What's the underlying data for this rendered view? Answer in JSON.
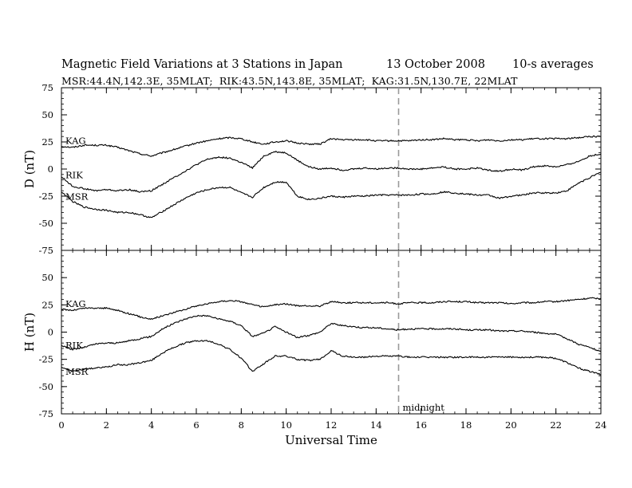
{
  "header": {
    "title": "Magnetic Field Variations at 3 Stations in Japan",
    "date": "13 October 2008",
    "averaging": "10-s averages",
    "stations_line": "MSR:44.4N,142.3E, 35MLAT;  RIK:43.5N,143.8E, 35MLAT;  KAG:31.5N,130.7E, 22MLAT"
  },
  "chart_data": [
    {
      "type": "line",
      "title": "",
      "xlabel": "",
      "ylabel": "D (nT)",
      "xlim": [
        0,
        24
      ],
      "ylim": [
        -75,
        75
      ],
      "yticks": [
        -75,
        -50,
        -25,
        0,
        25,
        50,
        75
      ],
      "xticks": [
        0,
        2,
        4,
        6,
        8,
        10,
        12,
        14,
        16,
        18,
        20,
        22,
        24
      ],
      "grid": false,
      "x": [
        0,
        0.5,
        1,
        1.5,
        2,
        2.5,
        3,
        3.5,
        4,
        4.5,
        5,
        5.5,
        6,
        6.5,
        7,
        7.5,
        8,
        8.5,
        9,
        9.5,
        10,
        10.5,
        11,
        11.5,
        12,
        12.5,
        13,
        13.5,
        14,
        14.5,
        15,
        15.5,
        16,
        16.5,
        17,
        17.5,
        18,
        18.5,
        19,
        19.5,
        20,
        20.5,
        21,
        21.5,
        22,
        22.5,
        23,
        23.5,
        24
      ],
      "series": [
        {
          "name": "KAG",
          "values": [
            21,
            20,
            22,
            22,
            22,
            20,
            17,
            14,
            12,
            15,
            18,
            21,
            24,
            26,
            28,
            29,
            28,
            25,
            23,
            25,
            26,
            24,
            23,
            23,
            28,
            27,
            27,
            27,
            26,
            26,
            26,
            26,
            27,
            27,
            28,
            27,
            27,
            26,
            27,
            26,
            27,
            27,
            28,
            28,
            28,
            28,
            29,
            30,
            30
          ]
        },
        {
          "name": "RIK",
          "values": [
            -7,
            -16,
            -18,
            -20,
            -19,
            -20,
            -19,
            -21,
            -20,
            -14,
            -8,
            -2,
            4,
            9,
            11,
            10,
            6,
            1,
            12,
            16,
            15,
            8,
            2,
            0,
            1,
            -1,
            0,
            1,
            0,
            1,
            1,
            0,
            0,
            1,
            2,
            0,
            0,
            1,
            -1,
            -2,
            0,
            -1,
            2,
            3,
            2,
            4,
            7,
            12,
            14
          ]
        },
        {
          "name": "MSR",
          "values": [
            -21,
            -30,
            -35,
            -37,
            -38,
            -40,
            -40,
            -42,
            -45,
            -39,
            -33,
            -27,
            -22,
            -19,
            -17,
            -17,
            -22,
            -26,
            -17,
            -12,
            -12,
            -25,
            -28,
            -27,
            -25,
            -26,
            -25,
            -25,
            -24,
            -24,
            -24,
            -24,
            -23,
            -23,
            -21,
            -22,
            -23,
            -24,
            -24,
            -27,
            -25,
            -24,
            -22,
            -22,
            -22,
            -20,
            -13,
            -8,
            -3
          ]
        }
      ]
    },
    {
      "type": "line",
      "title": "",
      "xlabel": "Universal Time",
      "ylabel": "H (nT)",
      "xlim": [
        0,
        24
      ],
      "ylim": [
        -75,
        75
      ],
      "yticks": [
        -75,
        -50,
        -25,
        0,
        25,
        50,
        75
      ],
      "xticks": [
        0,
        2,
        4,
        6,
        8,
        10,
        12,
        14,
        16,
        18,
        20,
        22,
        24
      ],
      "grid": false,
      "annotations": [
        {
          "text": "midnight",
          "x": 15
        }
      ],
      "x": [
        0,
        0.5,
        1,
        1.5,
        2,
        2.5,
        3,
        3.5,
        4,
        4.5,
        5,
        5.5,
        6,
        6.5,
        7,
        7.5,
        8,
        8.5,
        9,
        9.5,
        10,
        10.5,
        11,
        11.5,
        12,
        12.5,
        13,
        13.5,
        14,
        14.5,
        15,
        15.5,
        16,
        16.5,
        17,
        17.5,
        18,
        18.5,
        19,
        19.5,
        20,
        20.5,
        21,
        21.5,
        22,
        22.5,
        23,
        23.5,
        24
      ],
      "series": [
        {
          "name": "KAG",
          "values": [
            21,
            20,
            22,
            22,
            22,
            20,
            17,
            14,
            12,
            15,
            18,
            21,
            24,
            26,
            28,
            29,
            28,
            25,
            23,
            25,
            26,
            24,
            24,
            24,
            28,
            27,
            27,
            27,
            27,
            27,
            26,
            27,
            27,
            27,
            28,
            28,
            28,
            27,
            27,
            27,
            26,
            27,
            27,
            28,
            28,
            29,
            30,
            31,
            31
          ]
        },
        {
          "name": "RIK",
          "values": [
            -12,
            -16,
            -14,
            -11,
            -10,
            -10,
            -8,
            -6,
            -4,
            3,
            8,
            12,
            15,
            15,
            12,
            10,
            6,
            -4,
            -1,
            5,
            0,
            -5,
            -3,
            0,
            8,
            6,
            5,
            4,
            4,
            3,
            2,
            3,
            3,
            3,
            3,
            3,
            2,
            2,
            2,
            1,
            1,
            1,
            0,
            -1,
            -2,
            -6,
            -11,
            -14,
            -18
          ]
        },
        {
          "name": "MSR",
          "values": [
            -32,
            -36,
            -34,
            -33,
            -32,
            -30,
            -30,
            -28,
            -26,
            -19,
            -14,
            -10,
            -8,
            -8,
            -11,
            -16,
            -24,
            -36,
            -29,
            -22,
            -22,
            -25,
            -26,
            -25,
            -17,
            -22,
            -23,
            -23,
            -22,
            -22,
            -22,
            -23,
            -23,
            -23,
            -23,
            -23,
            -23,
            -23,
            -23,
            -23,
            -23,
            -23,
            -23,
            -23,
            -24,
            -28,
            -33,
            -36,
            -39
          ]
        }
      ]
    }
  ]
}
